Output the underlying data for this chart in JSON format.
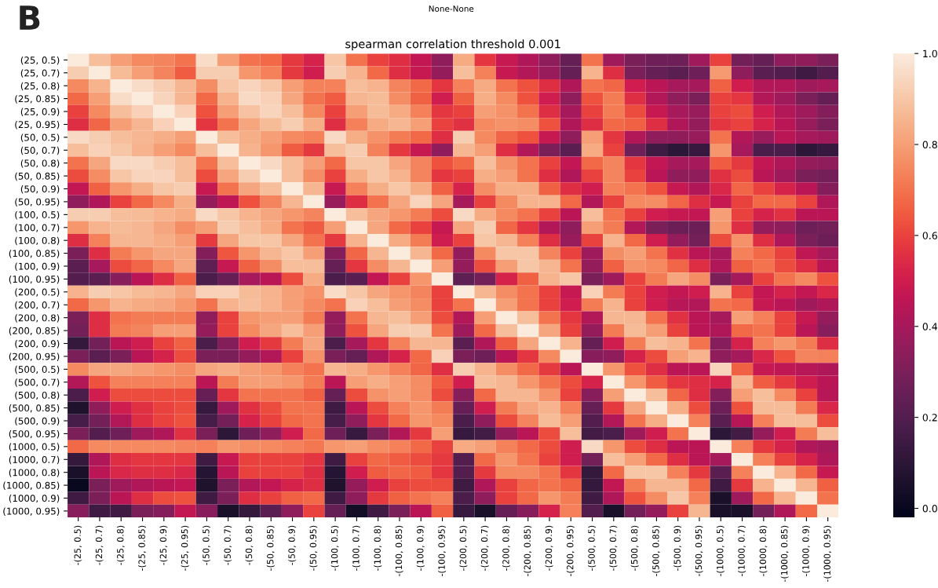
{
  "chart_data": {
    "type": "heatmap",
    "title": "spearman correlation threshold 0.001",
    "annotations": [
      "B",
      "None-None"
    ],
    "categories": [
      "-(25, 0.5)",
      "-(25, 0.7)",
      "-(25, 0.8)",
      "-(25, 0.85)",
      "-(25, 0.9)",
      "-(25, 0.95)",
      "-(50, 0.5)",
      "-(50, 0.7)",
      "-(50, 0.8)",
      "-(50, 0.85)",
      "-(50, 0.9)",
      "-(50, 0.95)",
      "-(100, 0.5)",
      "-(100, 0.7)",
      "-(100, 0.8)",
      "-(100, 0.85)",
      "-(100, 0.9)",
      "-(100, 0.95)",
      "-(200, 0.5)",
      "-(200, 0.7)",
      "-(200, 0.8)",
      "-(200, 0.85)",
      "-(200, 0.9)",
      "-(200, 0.95)",
      "-(500, 0.5)",
      "-(500, 0.7)",
      "-(500, 0.8)",
      "-(500, 0.85)",
      "-(500, 0.9)",
      "-(500, 0.95)",
      "-(1000, 0.5)",
      "-(1000, 0.7)",
      "-(1000, 0.8)",
      "-(1000, 0.85)",
      "-(1000, 0.9)",
      "-(1000, 0.95)"
    ],
    "y_categories": [
      "(25, 0.5)",
      "(25, 0.7)",
      "(25, 0.8)",
      "(25, 0.85)",
      "(25, 0.9)",
      "(25, 0.95)",
      "(50, 0.5)",
      "(50, 0.7)",
      "(50, 0.8)",
      "(50, 0.85)",
      "(50, 0.9)",
      "(50, 0.95)",
      "(100, 0.5)",
      "(100, 0.7)",
      "(100, 0.8)",
      "(100, 0.85)",
      "(100, 0.9)",
      "(100, 0.95)",
      "(200, 0.5)",
      "(200, 0.7)",
      "(200, 0.8)",
      "(200, 0.85)",
      "(200, 0.9)",
      "(200, 0.95)",
      "(500, 0.5)",
      "(500, 0.7)",
      "(500, 0.8)",
      "(500, 0.85)",
      "(500, 0.9)",
      "(500, 0.95)",
      "(1000, 0.5)",
      "(1000, 0.7)",
      "(1000, 0.8)",
      "(1000, 0.85)",
      "(1000, 0.9)",
      "(1000, 0.95)"
    ],
    "cells": [
      [
        1.0,
        0.88,
        0.8,
        0.75,
        0.74,
        0.7,
        0.96,
        0.8,
        0.7,
        0.68,
        0.58,
        0.52,
        0.9,
        0.7,
        0.6,
        0.55,
        0.47,
        0.35,
        0.83,
        0.57,
        0.48,
        0.42,
        0.35,
        0.25,
        0.7,
        0.38,
        0.3,
        0.27,
        0.27,
        0.38,
        0.6,
        0.28,
        0.25,
        0.35,
        0.35,
        0.3
      ],
      [
        0.92,
        1.0,
        0.87,
        0.8,
        0.74,
        0.65,
        0.92,
        0.92,
        0.78,
        0.73,
        0.58,
        0.5,
        0.92,
        0.85,
        0.68,
        0.55,
        0.48,
        0.36,
        0.88,
        0.73,
        0.48,
        0.43,
        0.37,
        0.25,
        0.85,
        0.55,
        0.3,
        0.25,
        0.22,
        0.27,
        0.79,
        0.35,
        0.22,
        0.2,
        0.15,
        0.2
      ],
      [
        0.75,
        0.85,
        1.0,
        0.96,
        0.92,
        0.86,
        0.76,
        0.9,
        0.94,
        0.9,
        0.8,
        0.73,
        0.73,
        0.88,
        0.85,
        0.74,
        0.68,
        0.57,
        0.73,
        0.83,
        0.7,
        0.63,
        0.55,
        0.42,
        0.7,
        0.67,
        0.5,
        0.45,
        0.4,
        0.4,
        0.66,
        0.5,
        0.43,
        0.43,
        0.38,
        0.4
      ],
      [
        0.68,
        0.8,
        0.96,
        1.0,
        0.94,
        0.86,
        0.68,
        0.85,
        0.95,
        0.93,
        0.82,
        0.7,
        0.65,
        0.86,
        0.87,
        0.76,
        0.66,
        0.5,
        0.66,
        0.84,
        0.75,
        0.63,
        0.5,
        0.35,
        0.63,
        0.72,
        0.55,
        0.43,
        0.35,
        0.3,
        0.6,
        0.57,
        0.43,
        0.38,
        0.3,
        0.25
      ],
      [
        0.6,
        0.75,
        0.88,
        0.93,
        1.0,
        0.93,
        0.63,
        0.8,
        0.89,
        0.94,
        0.88,
        0.75,
        0.6,
        0.8,
        0.87,
        0.83,
        0.73,
        0.57,
        0.6,
        0.8,
        0.77,
        0.7,
        0.55,
        0.4,
        0.6,
        0.72,
        0.62,
        0.48,
        0.4,
        0.37,
        0.6,
        0.62,
        0.5,
        0.43,
        0.38,
        0.32
      ],
      [
        0.55,
        0.67,
        0.8,
        0.86,
        0.93,
        1.0,
        0.57,
        0.7,
        0.82,
        0.87,
        0.92,
        0.84,
        0.55,
        0.73,
        0.83,
        0.86,
        0.8,
        0.6,
        0.56,
        0.75,
        0.77,
        0.76,
        0.63,
        0.42,
        0.55,
        0.68,
        0.66,
        0.55,
        0.42,
        0.36,
        0.57,
        0.6,
        0.52,
        0.45,
        0.37,
        0.3
      ],
      [
        0.95,
        0.92,
        0.88,
        0.86,
        0.84,
        0.8,
        1.0,
        0.88,
        0.84,
        0.8,
        0.75,
        0.73,
        0.95,
        0.84,
        0.77,
        0.72,
        0.68,
        0.55,
        0.92,
        0.75,
        0.67,
        0.63,
        0.48,
        0.35,
        0.8,
        0.57,
        0.43,
        0.35,
        0.35,
        0.37,
        0.7,
        0.43,
        0.37,
        0.45,
        0.4,
        0.38
      ],
      [
        0.88,
        0.93,
        0.9,
        0.85,
        0.8,
        0.75,
        0.88,
        1.0,
        0.85,
        0.78,
        0.65,
        0.58,
        0.88,
        0.92,
        0.73,
        0.58,
        0.48,
        0.35,
        0.86,
        0.8,
        0.55,
        0.43,
        0.3,
        0.22,
        0.83,
        0.6,
        0.27,
        0.15,
        0.1,
        0.13,
        0.78,
        0.4,
        0.18,
        0.18,
        0.1,
        0.13
      ],
      [
        0.7,
        0.82,
        0.95,
        0.95,
        0.92,
        0.88,
        0.7,
        0.88,
        1.0,
        0.95,
        0.88,
        0.8,
        0.68,
        0.9,
        0.9,
        0.82,
        0.74,
        0.63,
        0.68,
        0.88,
        0.77,
        0.7,
        0.6,
        0.47,
        0.68,
        0.74,
        0.57,
        0.47,
        0.4,
        0.4,
        0.65,
        0.58,
        0.47,
        0.42,
        0.36,
        0.35
      ],
      [
        0.62,
        0.76,
        0.9,
        0.94,
        0.94,
        0.88,
        0.62,
        0.82,
        0.92,
        1.0,
        0.88,
        0.76,
        0.6,
        0.84,
        0.9,
        0.85,
        0.74,
        0.57,
        0.6,
        0.84,
        0.8,
        0.7,
        0.55,
        0.42,
        0.6,
        0.74,
        0.6,
        0.45,
        0.35,
        0.35,
        0.56,
        0.62,
        0.45,
        0.38,
        0.3,
        0.28
      ],
      [
        0.47,
        0.66,
        0.78,
        0.84,
        0.9,
        0.92,
        0.48,
        0.7,
        0.82,
        0.88,
        1.0,
        0.86,
        0.48,
        0.73,
        0.84,
        0.9,
        0.84,
        0.66,
        0.52,
        0.76,
        0.84,
        0.84,
        0.66,
        0.55,
        0.5,
        0.73,
        0.7,
        0.63,
        0.48,
        0.42,
        0.53,
        0.67,
        0.6,
        0.52,
        0.45,
        0.32
      ],
      [
        0.35,
        0.42,
        0.6,
        0.68,
        0.75,
        0.84,
        0.36,
        0.46,
        0.63,
        0.74,
        0.86,
        1.0,
        0.37,
        0.55,
        0.7,
        0.82,
        0.94,
        0.82,
        0.4,
        0.6,
        0.75,
        0.85,
        0.85,
        0.68,
        0.43,
        0.6,
        0.75,
        0.76,
        0.67,
        0.55,
        0.48,
        0.6,
        0.68,
        0.68,
        0.6,
        0.42
      ],
      [
        0.92,
        0.92,
        0.88,
        0.87,
        0.85,
        0.83,
        0.95,
        0.9,
        0.85,
        0.82,
        0.78,
        0.74,
        1.0,
        0.88,
        0.82,
        0.78,
        0.72,
        0.62,
        0.95,
        0.83,
        0.75,
        0.7,
        0.6,
        0.45,
        0.88,
        0.7,
        0.6,
        0.5,
        0.48,
        0.47,
        0.8,
        0.6,
        0.52,
        0.56,
        0.45,
        0.45
      ],
      [
        0.78,
        0.85,
        0.87,
        0.86,
        0.82,
        0.76,
        0.8,
        0.92,
        0.88,
        0.83,
        0.7,
        0.65,
        0.8,
        1.0,
        0.82,
        0.68,
        0.6,
        0.48,
        0.82,
        0.92,
        0.67,
        0.57,
        0.43,
        0.35,
        0.8,
        0.72,
        0.43,
        0.3,
        0.26,
        0.26,
        0.78,
        0.55,
        0.36,
        0.35,
        0.27,
        0.28
      ],
      [
        0.55,
        0.73,
        0.86,
        0.86,
        0.84,
        0.8,
        0.58,
        0.82,
        0.9,
        0.9,
        0.82,
        0.7,
        0.58,
        0.85,
        1.0,
        0.83,
        0.72,
        0.5,
        0.6,
        0.9,
        0.86,
        0.73,
        0.55,
        0.37,
        0.6,
        0.85,
        0.68,
        0.5,
        0.36,
        0.28,
        0.62,
        0.77,
        0.55,
        0.42,
        0.3,
        0.26
      ],
      [
        0.3,
        0.55,
        0.72,
        0.78,
        0.82,
        0.82,
        0.32,
        0.64,
        0.78,
        0.86,
        0.9,
        0.8,
        0.32,
        0.67,
        0.86,
        1.0,
        0.86,
        0.68,
        0.36,
        0.75,
        0.9,
        0.9,
        0.74,
        0.6,
        0.38,
        0.76,
        0.8,
        0.7,
        0.56,
        0.45,
        0.4,
        0.73,
        0.68,
        0.6,
        0.46,
        0.4
      ],
      [
        0.22,
        0.4,
        0.62,
        0.67,
        0.75,
        0.82,
        0.23,
        0.48,
        0.66,
        0.76,
        0.88,
        0.88,
        0.25,
        0.57,
        0.76,
        0.86,
        1.0,
        0.8,
        0.36,
        0.62,
        0.8,
        0.9,
        0.86,
        0.7,
        0.36,
        0.66,
        0.77,
        0.75,
        0.67,
        0.55,
        0.42,
        0.66,
        0.7,
        0.62,
        0.55,
        0.45
      ],
      [
        0.2,
        0.22,
        0.33,
        0.45,
        0.55,
        0.66,
        0.18,
        0.25,
        0.4,
        0.45,
        0.62,
        0.83,
        0.18,
        0.22,
        0.47,
        0.6,
        0.78,
        1.0,
        0.23,
        0.28,
        0.52,
        0.66,
        0.85,
        0.9,
        0.3,
        0.38,
        0.6,
        0.72,
        0.82,
        0.76,
        0.3,
        0.4,
        0.6,
        0.7,
        0.75,
        0.63
      ],
      [
        0.85,
        0.92,
        0.9,
        0.87,
        0.86,
        0.82,
        0.93,
        0.93,
        0.87,
        0.85,
        0.8,
        0.77,
        0.96,
        0.9,
        0.82,
        0.78,
        0.74,
        0.6,
        1.0,
        0.86,
        0.76,
        0.7,
        0.6,
        0.48,
        0.93,
        0.72,
        0.6,
        0.5,
        0.47,
        0.5,
        0.85,
        0.6,
        0.47,
        0.52,
        0.47,
        0.53
      ],
      [
        0.68,
        0.78,
        0.85,
        0.83,
        0.82,
        0.78,
        0.7,
        0.85,
        0.88,
        0.85,
        0.8,
        0.75,
        0.7,
        0.93,
        0.88,
        0.8,
        0.76,
        0.6,
        0.7,
        1.0,
        0.8,
        0.7,
        0.6,
        0.5,
        0.72,
        0.85,
        0.6,
        0.5,
        0.44,
        0.43,
        0.7,
        0.68,
        0.48,
        0.45,
        0.38,
        0.42
      ],
      [
        0.3,
        0.55,
        0.7,
        0.72,
        0.72,
        0.72,
        0.35,
        0.6,
        0.78,
        0.8,
        0.8,
        0.72,
        0.36,
        0.7,
        0.86,
        0.88,
        0.8,
        0.62,
        0.43,
        0.8,
        1.0,
        0.88,
        0.7,
        0.57,
        0.43,
        0.86,
        0.86,
        0.7,
        0.56,
        0.45,
        0.4,
        0.8,
        0.73,
        0.6,
        0.48,
        0.36
      ],
      [
        0.28,
        0.55,
        0.72,
        0.74,
        0.8,
        0.8,
        0.36,
        0.6,
        0.75,
        0.82,
        0.88,
        0.8,
        0.35,
        0.63,
        0.82,
        0.92,
        0.92,
        0.7,
        0.38,
        0.68,
        0.88,
        1.0,
        0.82,
        0.6,
        0.36,
        0.72,
        0.87,
        0.8,
        0.6,
        0.45,
        0.42,
        0.68,
        0.7,
        0.6,
        0.45,
        0.33
      ],
      [
        0.12,
        0.28,
        0.45,
        0.5,
        0.6,
        0.66,
        0.18,
        0.32,
        0.5,
        0.58,
        0.72,
        0.82,
        0.18,
        0.4,
        0.57,
        0.73,
        0.86,
        0.86,
        0.22,
        0.42,
        0.65,
        0.82,
        1.0,
        0.85,
        0.25,
        0.5,
        0.72,
        0.88,
        0.85,
        0.7,
        0.33,
        0.52,
        0.73,
        0.78,
        0.72,
        0.55
      ],
      [
        0.3,
        0.22,
        0.3,
        0.45,
        0.52,
        0.62,
        0.3,
        0.3,
        0.36,
        0.43,
        0.6,
        0.77,
        0.3,
        0.25,
        0.42,
        0.52,
        0.68,
        0.93,
        0.3,
        0.27,
        0.45,
        0.57,
        0.75,
        1.0,
        0.33,
        0.35,
        0.52,
        0.62,
        0.8,
        0.85,
        0.35,
        0.4,
        0.53,
        0.63,
        0.74,
        0.73
      ],
      [
        0.75,
        0.82,
        0.82,
        0.8,
        0.78,
        0.76,
        0.82,
        0.84,
        0.8,
        0.78,
        0.73,
        0.7,
        0.86,
        0.84,
        0.78,
        0.73,
        0.67,
        0.55,
        0.92,
        0.85,
        0.76,
        0.68,
        0.58,
        0.45,
        1.0,
        0.78,
        0.63,
        0.55,
        0.45,
        0.45,
        0.94,
        0.66,
        0.48,
        0.46,
        0.44,
        0.42
      ],
      [
        0.43,
        0.63,
        0.73,
        0.73,
        0.73,
        0.73,
        0.45,
        0.72,
        0.8,
        0.8,
        0.78,
        0.72,
        0.45,
        0.8,
        0.84,
        0.8,
        0.76,
        0.65,
        0.5,
        0.88,
        0.86,
        0.78,
        0.7,
        0.62,
        0.52,
        1.0,
        0.78,
        0.65,
        0.57,
        0.55,
        0.52,
        0.86,
        0.65,
        0.58,
        0.5,
        0.45
      ],
      [
        0.18,
        0.5,
        0.62,
        0.62,
        0.62,
        0.62,
        0.25,
        0.57,
        0.7,
        0.7,
        0.7,
        0.66,
        0.25,
        0.62,
        0.77,
        0.8,
        0.76,
        0.62,
        0.33,
        0.68,
        0.86,
        0.86,
        0.77,
        0.6,
        0.33,
        0.8,
        1.0,
        0.88,
        0.67,
        0.55,
        0.32,
        0.8,
        0.88,
        0.75,
        0.6,
        0.44
      ],
      [
        0.06,
        0.35,
        0.5,
        0.56,
        0.6,
        0.62,
        0.13,
        0.38,
        0.56,
        0.62,
        0.7,
        0.7,
        0.15,
        0.45,
        0.62,
        0.73,
        0.78,
        0.72,
        0.25,
        0.5,
        0.72,
        0.82,
        0.85,
        0.73,
        0.25,
        0.58,
        0.82,
        1.0,
        0.84,
        0.62,
        0.26,
        0.63,
        0.87,
        0.87,
        0.72,
        0.53
      ],
      [
        0.17,
        0.28,
        0.43,
        0.55,
        0.6,
        0.63,
        0.17,
        0.28,
        0.52,
        0.6,
        0.68,
        0.7,
        0.17,
        0.35,
        0.57,
        0.68,
        0.78,
        0.75,
        0.18,
        0.35,
        0.62,
        0.74,
        0.87,
        0.8,
        0.2,
        0.43,
        0.7,
        0.84,
        1.0,
        0.73,
        0.22,
        0.44,
        0.73,
        0.88,
        0.88,
        0.62
      ],
      [
        0.3,
        0.2,
        0.27,
        0.38,
        0.42,
        0.56,
        0.3,
        0.1,
        0.27,
        0.35,
        0.5,
        0.68,
        0.27,
        0.13,
        0.3,
        0.43,
        0.58,
        0.8,
        0.13,
        0.16,
        0.36,
        0.45,
        0.62,
        0.88,
        0.16,
        0.18,
        0.38,
        0.5,
        0.7,
        1.0,
        0.1,
        0.16,
        0.36,
        0.5,
        0.72,
        0.88
      ],
      [
        0.68,
        0.75,
        0.75,
        0.75,
        0.75,
        0.74,
        0.73,
        0.78,
        0.76,
        0.75,
        0.73,
        0.71,
        0.78,
        0.8,
        0.76,
        0.73,
        0.68,
        0.6,
        0.83,
        0.8,
        0.73,
        0.68,
        0.62,
        0.5,
        0.95,
        0.78,
        0.62,
        0.55,
        0.45,
        0.45,
        1.0,
        0.73,
        0.58,
        0.52,
        0.42,
        0.4
      ],
      [
        0.12,
        0.42,
        0.55,
        0.57,
        0.57,
        0.57,
        0.15,
        0.48,
        0.6,
        0.6,
        0.6,
        0.57,
        0.15,
        0.6,
        0.68,
        0.65,
        0.62,
        0.58,
        0.2,
        0.68,
        0.78,
        0.7,
        0.6,
        0.5,
        0.28,
        0.88,
        0.8,
        0.68,
        0.55,
        0.45,
        0.4,
        1.0,
        0.73,
        0.6,
        0.52,
        0.42
      ],
      [
        0.05,
        0.45,
        0.53,
        0.55,
        0.55,
        0.53,
        0.08,
        0.45,
        0.6,
        0.6,
        0.6,
        0.55,
        0.08,
        0.5,
        0.65,
        0.67,
        0.65,
        0.57,
        0.2,
        0.58,
        0.75,
        0.75,
        0.7,
        0.57,
        0.12,
        0.68,
        0.9,
        0.9,
        0.73,
        0.58,
        0.22,
        0.73,
        1.0,
        0.85,
        0.68,
        0.48
      ],
      [
        0.0,
        0.3,
        0.38,
        0.42,
        0.45,
        0.47,
        0.06,
        0.3,
        0.43,
        0.47,
        0.52,
        0.55,
        0.06,
        0.36,
        0.5,
        0.6,
        0.62,
        0.62,
        0.15,
        0.42,
        0.6,
        0.67,
        0.7,
        0.66,
        0.12,
        0.47,
        0.72,
        0.86,
        0.86,
        0.68,
        0.15,
        0.58,
        0.85,
        1.0,
        0.86,
        0.66
      ],
      [
        0.15,
        0.3,
        0.45,
        0.55,
        0.62,
        0.63,
        0.15,
        0.3,
        0.55,
        0.6,
        0.66,
        0.68,
        0.15,
        0.35,
        0.58,
        0.66,
        0.7,
        0.73,
        0.18,
        0.35,
        0.6,
        0.68,
        0.78,
        0.72,
        0.15,
        0.42,
        0.63,
        0.76,
        0.9,
        0.73,
        0.05,
        0.38,
        0.68,
        0.85,
        1.0,
        0.7
      ],
      [
        0.33,
        0.15,
        0.15,
        0.3,
        0.32,
        0.47,
        0.33,
        0.05,
        0.12,
        0.22,
        0.35,
        0.6,
        0.25,
        0.03,
        0.15,
        0.3,
        0.45,
        0.66,
        0.13,
        0.05,
        0.25,
        0.33,
        0.52,
        0.73,
        0.2,
        0.05,
        0.28,
        0.36,
        0.6,
        0.86,
        0.05,
        0.05,
        0.28,
        0.42,
        0.68,
        1.0
      ]
    ],
    "clim": [
      -0.02,
      1.0
    ],
    "cticks": [
      {
        "value": 0,
        "label": "0.0"
      },
      {
        "value": 0.2,
        "label": "0.2"
      },
      {
        "value": 0.4,
        "label": "0.4"
      },
      {
        "value": 0.6,
        "label": "0.6"
      },
      {
        "value": 0.8,
        "label": "0.8"
      },
      {
        "value": 1,
        "label": "1.0"
      }
    ]
  }
}
